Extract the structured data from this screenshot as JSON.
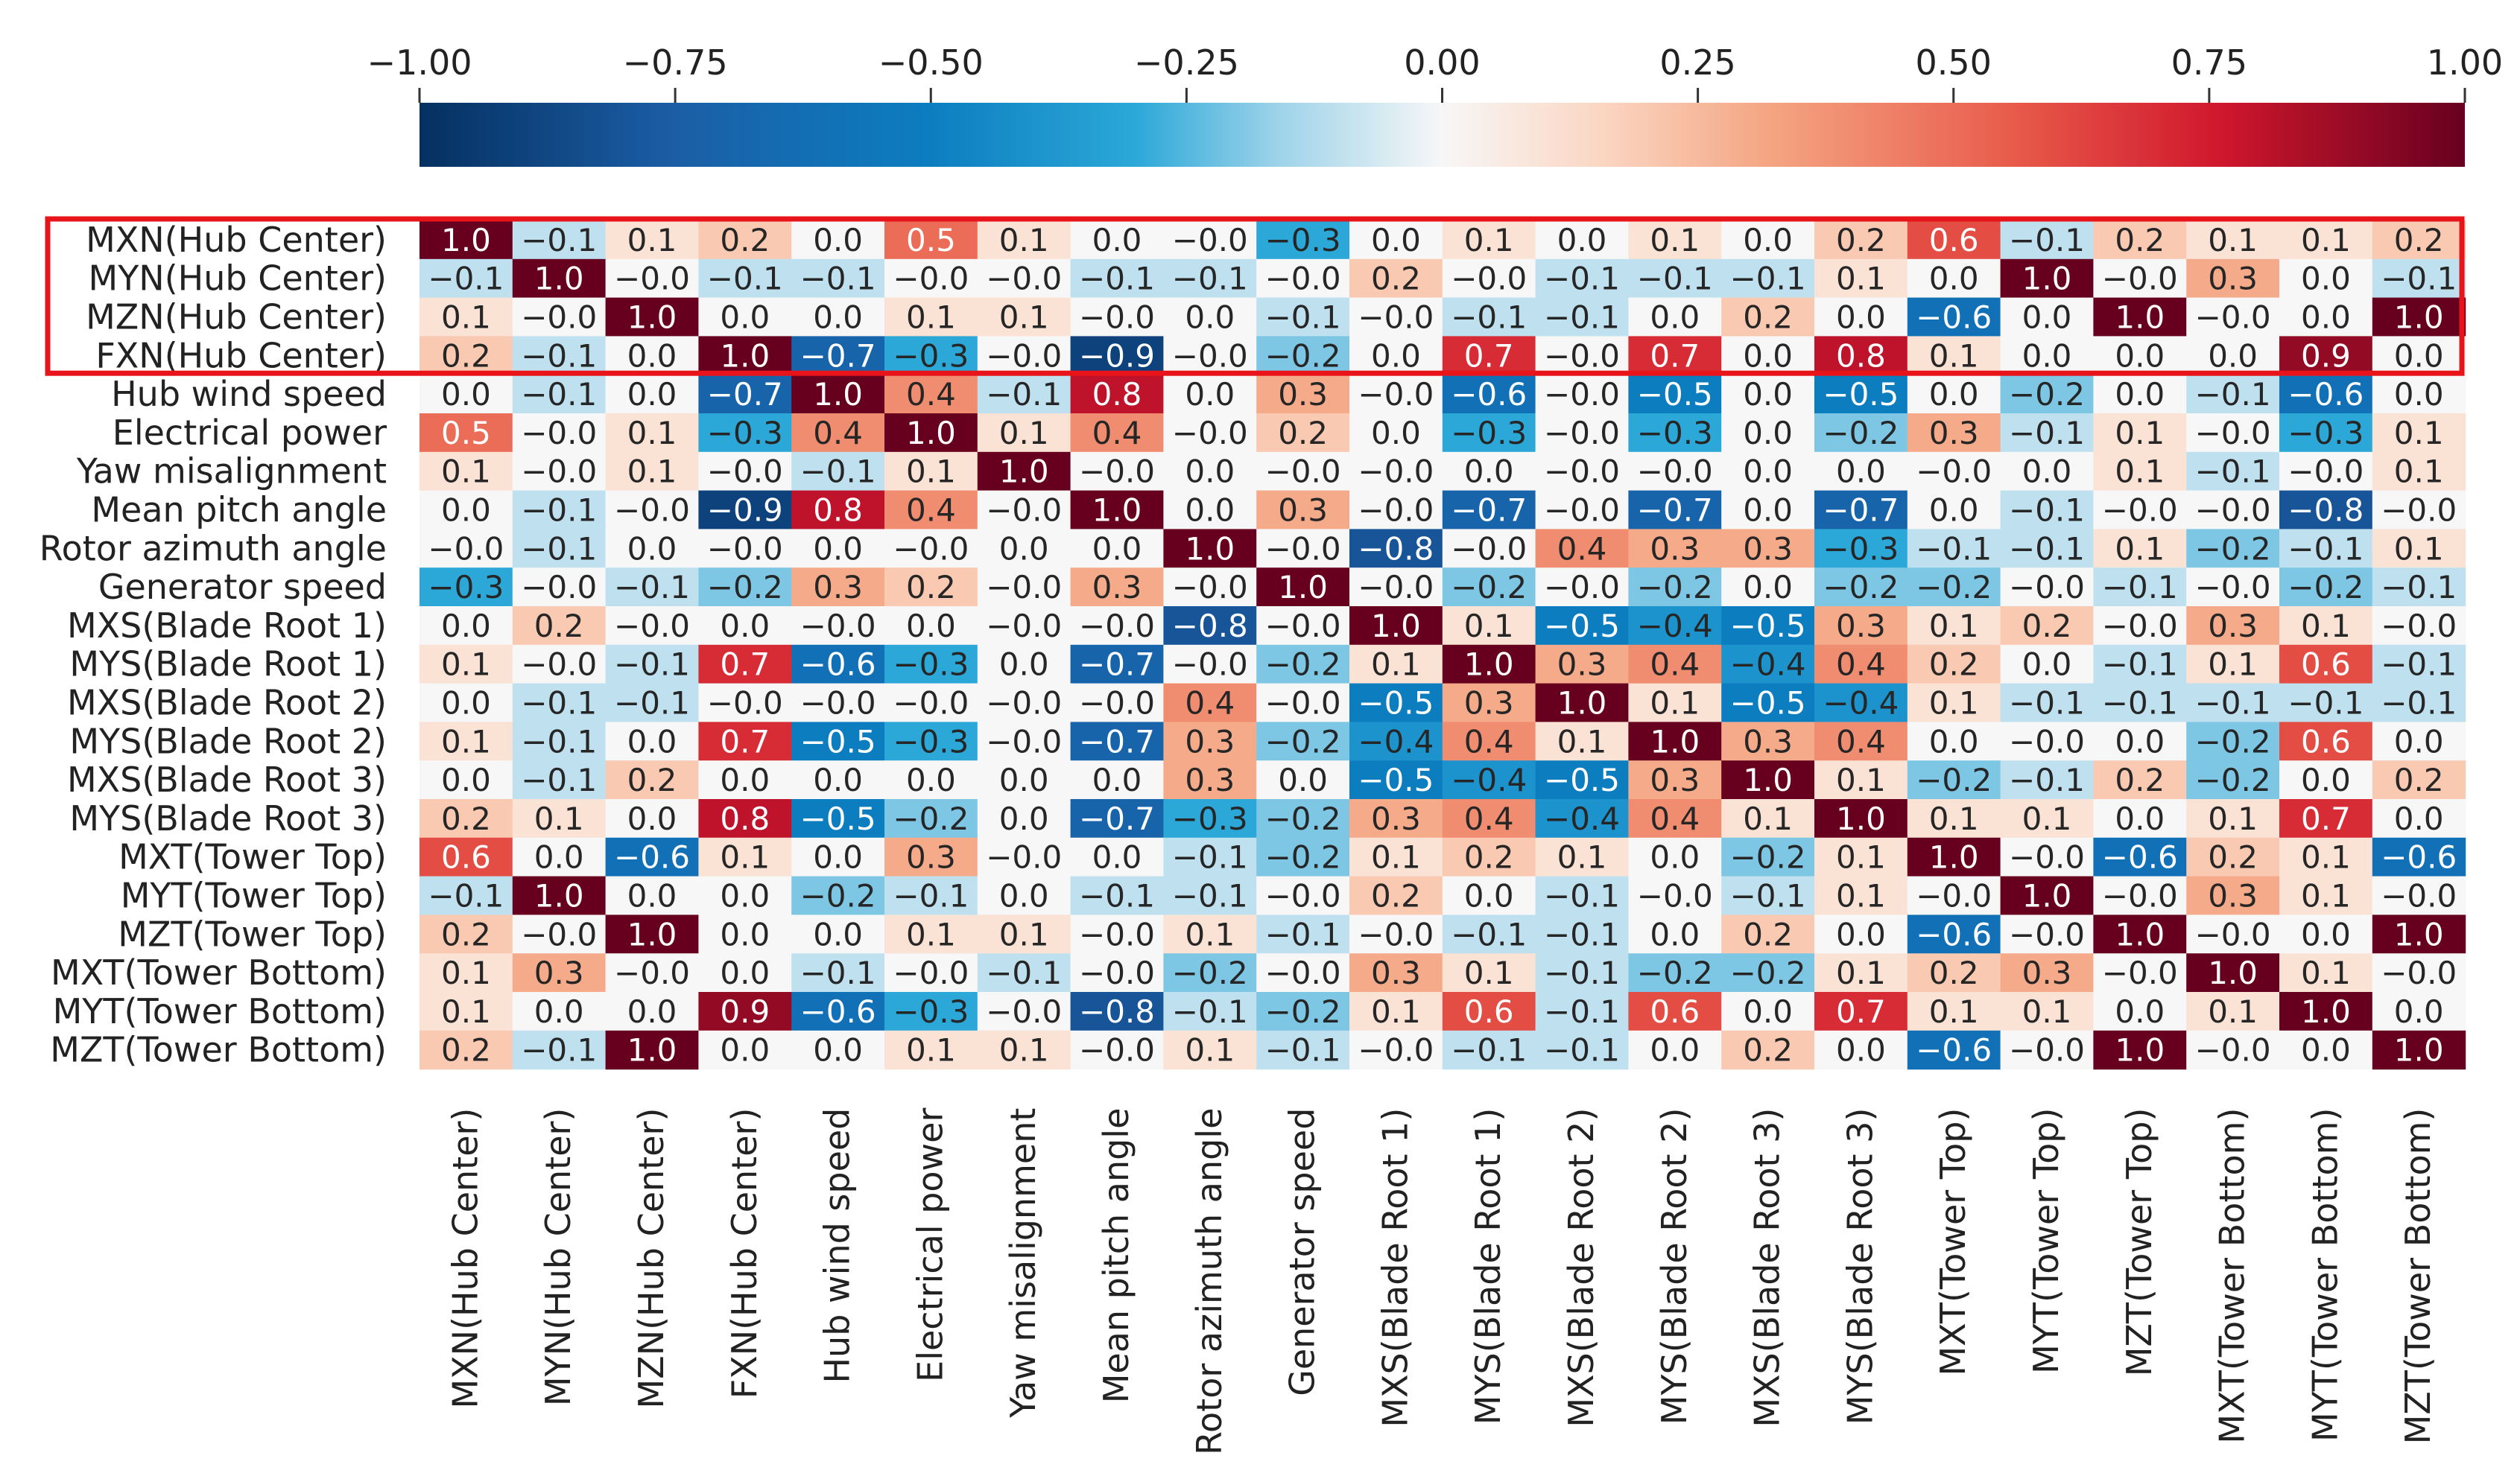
{
  "chart_data": {
    "type": "heatmap",
    "title": "",
    "variables": [
      "MXN(Hub Center)",
      "MYN(Hub Center)",
      "MZN(Hub Center)",
      "FXN(Hub Center)",
      "Hub wind speed",
      "Electrical power",
      "Yaw misalignment",
      "Mean pitch angle",
      "Rotor azimuth angle",
      "Generator speed",
      "MXS(Blade Root 1)",
      "MYS(Blade Root 1)",
      "MXS(Blade Root 2)",
      "MYS(Blade Root 2)",
      "MXS(Blade Root 3)",
      "MYS(Blade Root 3)",
      "MXT(Tower Top)",
      "MYT(Tower Top)",
      "MZT(Tower Top)",
      "MXT(Tower Bottom)",
      "MYT(Tower Bottom)",
      "MZT(Tower Bottom)"
    ],
    "matrix": [
      [
        "1.0",
        "−0.1",
        "0.1",
        "0.2",
        "0.0",
        "0.5",
        "0.1",
        "0.0",
        "−0.0",
        "−0.3",
        "0.0",
        "0.1",
        "0.0",
        "0.1",
        "0.0",
        "0.2",
        "0.6",
        "−0.1",
        "0.2",
        "0.1",
        "0.1",
        "0.2"
      ],
      [
        "−0.1",
        "1.0",
        "−0.0",
        "−0.1",
        "−0.1",
        "−0.0",
        "−0.0",
        "−0.1",
        "−0.1",
        "−0.0",
        "0.2",
        "−0.0",
        "−0.1",
        "−0.1",
        "−0.1",
        "0.1",
        "0.0",
        "1.0",
        "−0.0",
        "0.3",
        "0.0",
        "−0.1"
      ],
      [
        "0.1",
        "−0.0",
        "1.0",
        "0.0",
        "0.0",
        "0.1",
        "0.1",
        "−0.0",
        "0.0",
        "−0.1",
        "−0.0",
        "−0.1",
        "−0.1",
        "0.0",
        "0.2",
        "0.0",
        "−0.6",
        "0.0",
        "1.0",
        "−0.0",
        "0.0",
        "1.0"
      ],
      [
        "0.2",
        "−0.1",
        "0.0",
        "1.0",
        "−0.7",
        "−0.3",
        "−0.0",
        "−0.9",
        "−0.0",
        "−0.2",
        "0.0",
        "0.7",
        "−0.0",
        "0.7",
        "0.0",
        "0.8",
        "0.1",
        "0.0",
        "0.0",
        "0.0",
        "0.9",
        "0.0"
      ],
      [
        "0.0",
        "−0.1",
        "0.0",
        "−0.7",
        "1.0",
        "0.4",
        "−0.1",
        "0.8",
        "0.0",
        "0.3",
        "−0.0",
        "−0.6",
        "−0.0",
        "−0.5",
        "0.0",
        "−0.5",
        "0.0",
        "−0.2",
        "0.0",
        "−0.1",
        "−0.6",
        "0.0"
      ],
      [
        "0.5",
        "−0.0",
        "0.1",
        "−0.3",
        "0.4",
        "1.0",
        "0.1",
        "0.4",
        "−0.0",
        "0.2",
        "0.0",
        "−0.3",
        "−0.0",
        "−0.3",
        "0.0",
        "−0.2",
        "0.3",
        "−0.1",
        "0.1",
        "−0.0",
        "−0.3",
        "0.1"
      ],
      [
        "0.1",
        "−0.0",
        "0.1",
        "−0.0",
        "−0.1",
        "0.1",
        "1.0",
        "−0.0",
        "0.0",
        "−0.0",
        "−0.0",
        "0.0",
        "−0.0",
        "−0.0",
        "0.0",
        "0.0",
        "−0.0",
        "0.0",
        "0.1",
        "−0.1",
        "−0.0",
        "0.1"
      ],
      [
        "0.0",
        "−0.1",
        "−0.0",
        "−0.9",
        "0.8",
        "0.4",
        "−0.0",
        "1.0",
        "0.0",
        "0.3",
        "−0.0",
        "−0.7",
        "−0.0",
        "−0.7",
        "0.0",
        "−0.7",
        "0.0",
        "−0.1",
        "−0.0",
        "−0.0",
        "−0.8",
        "−0.0"
      ],
      [
        "−0.0",
        "−0.1",
        "0.0",
        "−0.0",
        "0.0",
        "−0.0",
        "0.0",
        "0.0",
        "1.0",
        "−0.0",
        "−0.8",
        "−0.0",
        "0.4",
        "0.3",
        "0.3",
        "−0.3",
        "−0.1",
        "−0.1",
        "0.1",
        "−0.2",
        "−0.1",
        "0.1"
      ],
      [
        "−0.3",
        "−0.0",
        "−0.1",
        "−0.2",
        "0.3",
        "0.2",
        "−0.0",
        "0.3",
        "−0.0",
        "1.0",
        "−0.0",
        "−0.2",
        "−0.0",
        "−0.2",
        "0.0",
        "−0.2",
        "−0.2",
        "−0.0",
        "−0.1",
        "−0.0",
        "−0.2",
        "−0.1"
      ],
      [
        "0.0",
        "0.2",
        "−0.0",
        "0.0",
        "−0.0",
        "0.0",
        "−0.0",
        "−0.0",
        "−0.8",
        "−0.0",
        "1.0",
        "0.1",
        "−0.5",
        "−0.4",
        "−0.5",
        "0.3",
        "0.1",
        "0.2",
        "−0.0",
        "0.3",
        "0.1",
        "−0.0"
      ],
      [
        "0.1",
        "−0.0",
        "−0.1",
        "0.7",
        "−0.6",
        "−0.3",
        "0.0",
        "−0.7",
        "−0.0",
        "−0.2",
        "0.1",
        "1.0",
        "0.3",
        "0.4",
        "−0.4",
        "0.4",
        "0.2",
        "0.0",
        "−0.1",
        "0.1",
        "0.6",
        "−0.1"
      ],
      [
        "0.0",
        "−0.1",
        "−0.1",
        "−0.0",
        "−0.0",
        "−0.0",
        "−0.0",
        "−0.0",
        "0.4",
        "−0.0",
        "−0.5",
        "0.3",
        "1.0",
        "0.1",
        "−0.5",
        "−0.4",
        "0.1",
        "−0.1",
        "−0.1",
        "−0.1",
        "−0.1",
        "−0.1"
      ],
      [
        "0.1",
        "−0.1",
        "0.0",
        "0.7",
        "−0.5",
        "−0.3",
        "−0.0",
        "−0.7",
        "0.3",
        "−0.2",
        "−0.4",
        "0.4",
        "0.1",
        "1.0",
        "0.3",
        "0.4",
        "0.0",
        "−0.0",
        "0.0",
        "−0.2",
        "0.6",
        "0.0"
      ],
      [
        "0.0",
        "−0.1",
        "0.2",
        "0.0",
        "0.0",
        "0.0",
        "0.0",
        "0.0",
        "0.3",
        "0.0",
        "−0.5",
        "−0.4",
        "−0.5",
        "0.3",
        "1.0",
        "0.1",
        "−0.2",
        "−0.1",
        "0.2",
        "−0.2",
        "0.0",
        "0.2"
      ],
      [
        "0.2",
        "0.1",
        "0.0",
        "0.8",
        "−0.5",
        "−0.2",
        "0.0",
        "−0.7",
        "−0.3",
        "−0.2",
        "0.3",
        "0.4",
        "−0.4",
        "0.4",
        "0.1",
        "1.0",
        "0.1",
        "0.1",
        "0.0",
        "0.1",
        "0.7",
        "0.0"
      ],
      [
        "0.6",
        "0.0",
        "−0.6",
        "0.1",
        "0.0",
        "0.3",
        "−0.0",
        "0.0",
        "−0.1",
        "−0.2",
        "0.1",
        "0.2",
        "0.1",
        "0.0",
        "−0.2",
        "0.1",
        "1.0",
        "−0.0",
        "−0.6",
        "0.2",
        "0.1",
        "−0.6"
      ],
      [
        "−0.1",
        "1.0",
        "0.0",
        "0.0",
        "−0.2",
        "−0.1",
        "0.0",
        "−0.1",
        "−0.1",
        "−0.0",
        "0.2",
        "0.0",
        "−0.1",
        "−0.0",
        "−0.1",
        "0.1",
        "−0.0",
        "1.0",
        "−0.0",
        "0.3",
        "0.1",
        "−0.0"
      ],
      [
        "0.2",
        "−0.0",
        "1.0",
        "0.0",
        "0.0",
        "0.1",
        "0.1",
        "−0.0",
        "0.1",
        "−0.1",
        "−0.0",
        "−0.1",
        "−0.1",
        "0.0",
        "0.2",
        "0.0",
        "−0.6",
        "−0.0",
        "1.0",
        "−0.0",
        "0.0",
        "1.0"
      ],
      [
        "0.1",
        "0.3",
        "−0.0",
        "0.0",
        "−0.1",
        "−0.0",
        "−0.1",
        "−0.0",
        "−0.2",
        "−0.0",
        "0.3",
        "0.1",
        "−0.1",
        "−0.2",
        "−0.2",
        "0.1",
        "0.2",
        "0.3",
        "−0.0",
        "1.0",
        "0.1",
        "−0.0"
      ],
      [
        "0.1",
        "0.0",
        "0.0",
        "0.9",
        "−0.6",
        "−0.3",
        "−0.0",
        "−0.8",
        "−0.1",
        "−0.2",
        "0.1",
        "0.6",
        "−0.1",
        "0.6",
        "0.0",
        "0.7",
        "0.1",
        "0.1",
        "0.0",
        "0.1",
        "1.0",
        "0.0"
      ],
      [
        "0.2",
        "−0.1",
        "1.0",
        "0.0",
        "0.0",
        "0.1",
        "0.1",
        "−0.0",
        "0.1",
        "−0.1",
        "−0.0",
        "−0.1",
        "−0.1",
        "0.0",
        "0.2",
        "0.0",
        "−0.6",
        "−0.0",
        "1.0",
        "−0.0",
        "0.0",
        "1.0"
      ]
    ],
    "colorbar": {
      "range": [
        -1.0,
        1.0
      ],
      "ticks": [
        "−1.00",
        "−0.75",
        "−0.50",
        "−0.25",
        "0.00",
        "0.25",
        "0.50",
        "0.75",
        "1.00"
      ],
      "colormap": "RdBu_r",
      "placement": "top"
    },
    "highlight": {
      "rows_from": 0,
      "rows_to": 3,
      "color": "#e8141a"
    }
  }
}
